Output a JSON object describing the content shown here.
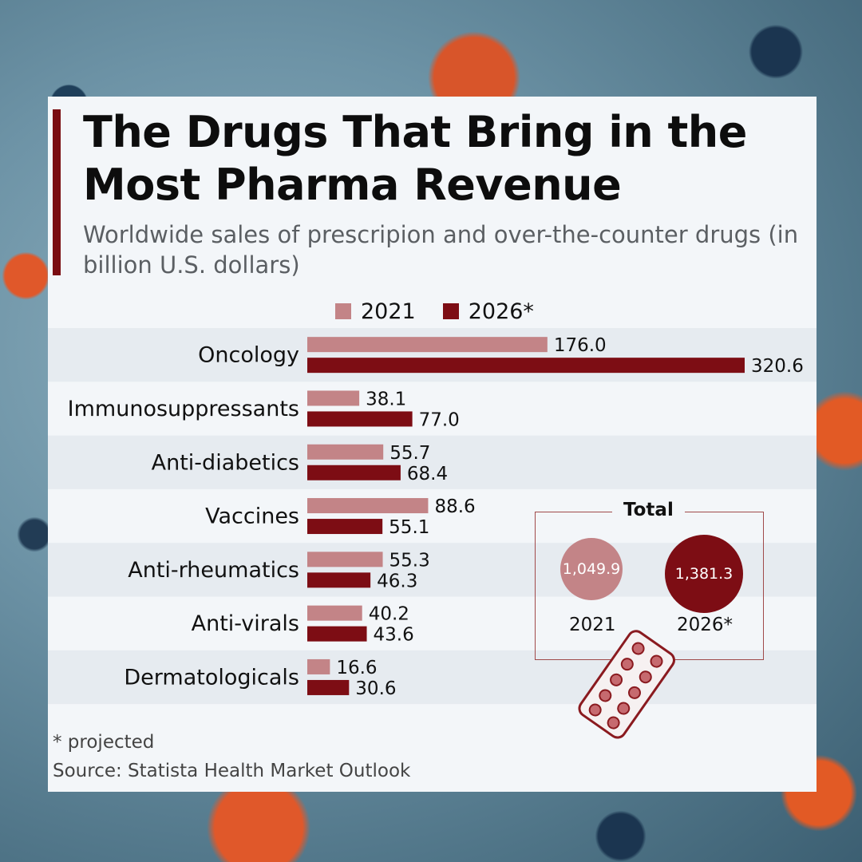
{
  "title": "The Drugs That Bring in the Most Pharma Revenue",
  "subtitle": "Worldwide sales of prescripion and over-the-counter drugs (in billion U.S. dollars)",
  "footnote": "* projected",
  "source": "Source: Statista Health Market Outlook",
  "colors": {
    "series_2021": "#c38487",
    "series_2026": "#7d0d14",
    "accent": "#7a0d12",
    "band": "#e6ebf0"
  },
  "legend": [
    {
      "label": "2021"
    },
    {
      "label": "2026*"
    }
  ],
  "totals": {
    "title": "Total",
    "items": [
      {
        "year": "2021",
        "value": 1049.9,
        "label": "1,049.9"
      },
      {
        "year": "2026*",
        "value": 1381.3,
        "label": "1,381.3"
      }
    ]
  },
  "icons": {
    "decoration": "pill-blister-pack-icon"
  },
  "chart_data": {
    "type": "bar",
    "orientation": "horizontal",
    "categories": [
      "Oncology",
      "Immunosuppressants",
      "Anti-diabetics",
      "Vaccines",
      "Anti-rheumatics",
      "Anti-virals",
      "Dermatologicals"
    ],
    "series": [
      {
        "name": "2021",
        "values": [
          176.0,
          38.1,
          55.7,
          88.6,
          55.3,
          40.2,
          16.6
        ]
      },
      {
        "name": "2026*",
        "values": [
          320.6,
          77.0,
          68.4,
          55.1,
          46.3,
          43.6,
          30.6
        ]
      }
    ],
    "value_labels": [
      [
        "176.0",
        "38.1",
        "55.7",
        "88.6",
        "55.3",
        "40.2",
        "16.6"
      ],
      [
        "320.6",
        "77.0",
        "68.4",
        "55.1",
        "46.3",
        "43.6",
        "30.6"
      ]
    ],
    "xlim": [
      0,
      320.6
    ],
    "grid": false,
    "legend_position": "top"
  }
}
